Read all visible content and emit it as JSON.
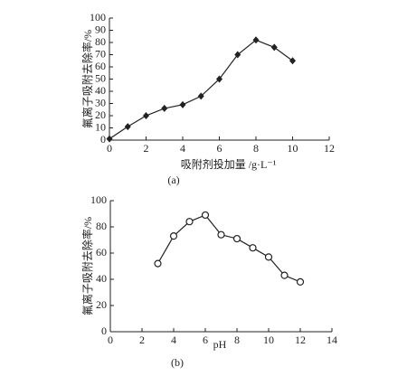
{
  "chart_data": [
    {
      "type": "line",
      "marker": "diamond",
      "color": "#222222",
      "x": [
        0,
        1,
        2,
        3,
        4,
        5,
        6,
        7,
        8,
        9,
        10
      ],
      "values": [
        1,
        11,
        20,
        26,
        29,
        36,
        50,
        70,
        82,
        76,
        65
      ],
      "xlim": [
        0,
        12
      ],
      "xticks": [
        0,
        2,
        4,
        6,
        8,
        10,
        12
      ],
      "ylim": [
        0,
        100
      ],
      "yticks": [
        0,
        10,
        20,
        30,
        40,
        50,
        60,
        70,
        80,
        90,
        100
      ],
      "xlabel": "吸附剂投加量 /g·L⁻¹",
      "ylabel": "氟离子吸附去除率/%",
      "caption": "(a)"
    },
    {
      "type": "line",
      "marker": "circle",
      "color": "#222222",
      "x": [
        3,
        4,
        5,
        6,
        7,
        8,
        9,
        10,
        11,
        12
      ],
      "values": [
        52,
        73,
        84,
        89,
        74,
        71,
        64,
        57,
        43,
        38
      ],
      "xlim": [
        0,
        14
      ],
      "xticks": [
        0,
        2,
        4,
        6,
        8,
        10,
        12,
        14
      ],
      "ylim": [
        0,
        100
      ],
      "yticks": [
        0,
        20,
        40,
        60,
        80,
        100
      ],
      "xlabel": "pH",
      "ylabel": "氟离子吸附去除率/%",
      "caption": "(b)"
    }
  ]
}
